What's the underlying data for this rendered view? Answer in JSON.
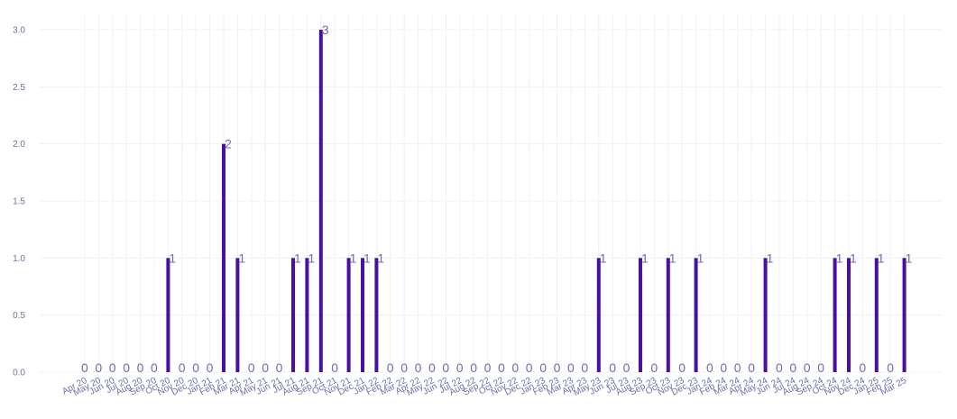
{
  "chart_data": {
    "type": "bar",
    "title": "",
    "xlabel": "",
    "ylabel": "",
    "ylim": [
      0,
      3.1
    ],
    "yticks": [
      "0.0",
      "0.5",
      "1.0",
      "1.5",
      "2.0",
      "2.5",
      "3.0"
    ],
    "grid": true,
    "bar_color": "#4a0fa3",
    "categories": [
      "Apr 20",
      "May 20",
      "Jun 20",
      "Jul 20",
      "Aug 20",
      "Sep 20",
      "Oct 20",
      "Nov 20",
      "Dec 20",
      "Jan 21",
      "Feb 21",
      "Mar 21",
      "Apr 21",
      "May 21",
      "Jun 21",
      "Jul 21",
      "Aug 21",
      "Sep 21",
      "Oct 21",
      "Nov 21",
      "Dec 21",
      "Jan 22",
      "Feb 22",
      "Mar 22",
      "Apr 22",
      "May 22",
      "Jun 22",
      "Jul 22",
      "Aug 22",
      "Sep 22",
      "Oct 22",
      "Nov 22",
      "Dec 22",
      "Jan 23",
      "Feb 23",
      "Mar 23",
      "Apr 23",
      "May 23",
      "Jun 23",
      "Jul 23",
      "Aug 23",
      "Sep 23",
      "Oct 23",
      "Nov 23",
      "Dec 23",
      "Jan 24",
      "Feb 24",
      "Mar 24",
      "Apr 24",
      "May 24",
      "Jun 24",
      "Jul 24",
      "Aug 24",
      "Sep 24",
      "Oct 24",
      "Nov 24",
      "Dec 24",
      "Jan 25",
      "Feb 25",
      "Mar 25"
    ],
    "values": [
      0,
      0,
      0,
      0,
      0,
      0,
      1,
      0,
      0,
      0,
      2,
      1,
      0,
      0,
      0,
      1,
      1,
      3,
      0,
      1,
      1,
      1,
      0,
      0,
      0,
      0,
      0,
      0,
      0,
      0,
      0,
      0,
      0,
      0,
      0,
      0,
      0,
      1,
      0,
      0,
      1,
      0,
      1,
      0,
      1,
      0,
      0,
      0,
      0,
      1,
      0,
      0,
      0,
      0,
      1,
      1,
      0,
      1,
      0,
      1
    ],
    "data_labels": [
      "0",
      "0",
      "0",
      "0",
      "0",
      "0",
      "1",
      "0",
      "0",
      "0",
      "2",
      "1",
      "0",
      "0",
      "0",
      "1",
      "1",
      "3",
      "0",
      "1",
      "1",
      "1",
      "0",
      "0",
      "0",
      "0",
      "0",
      "0",
      "0",
      "0",
      "0",
      "0",
      "0",
      "0",
      "0",
      "0",
      "0",
      "1",
      "0",
      "0",
      "1",
      "0",
      "1",
      "0",
      "1",
      "0",
      "0",
      "0",
      "0",
      "1",
      "0",
      "0",
      "0",
      "0",
      "1",
      "1",
      "0",
      "1",
      "0",
      "1"
    ]
  }
}
